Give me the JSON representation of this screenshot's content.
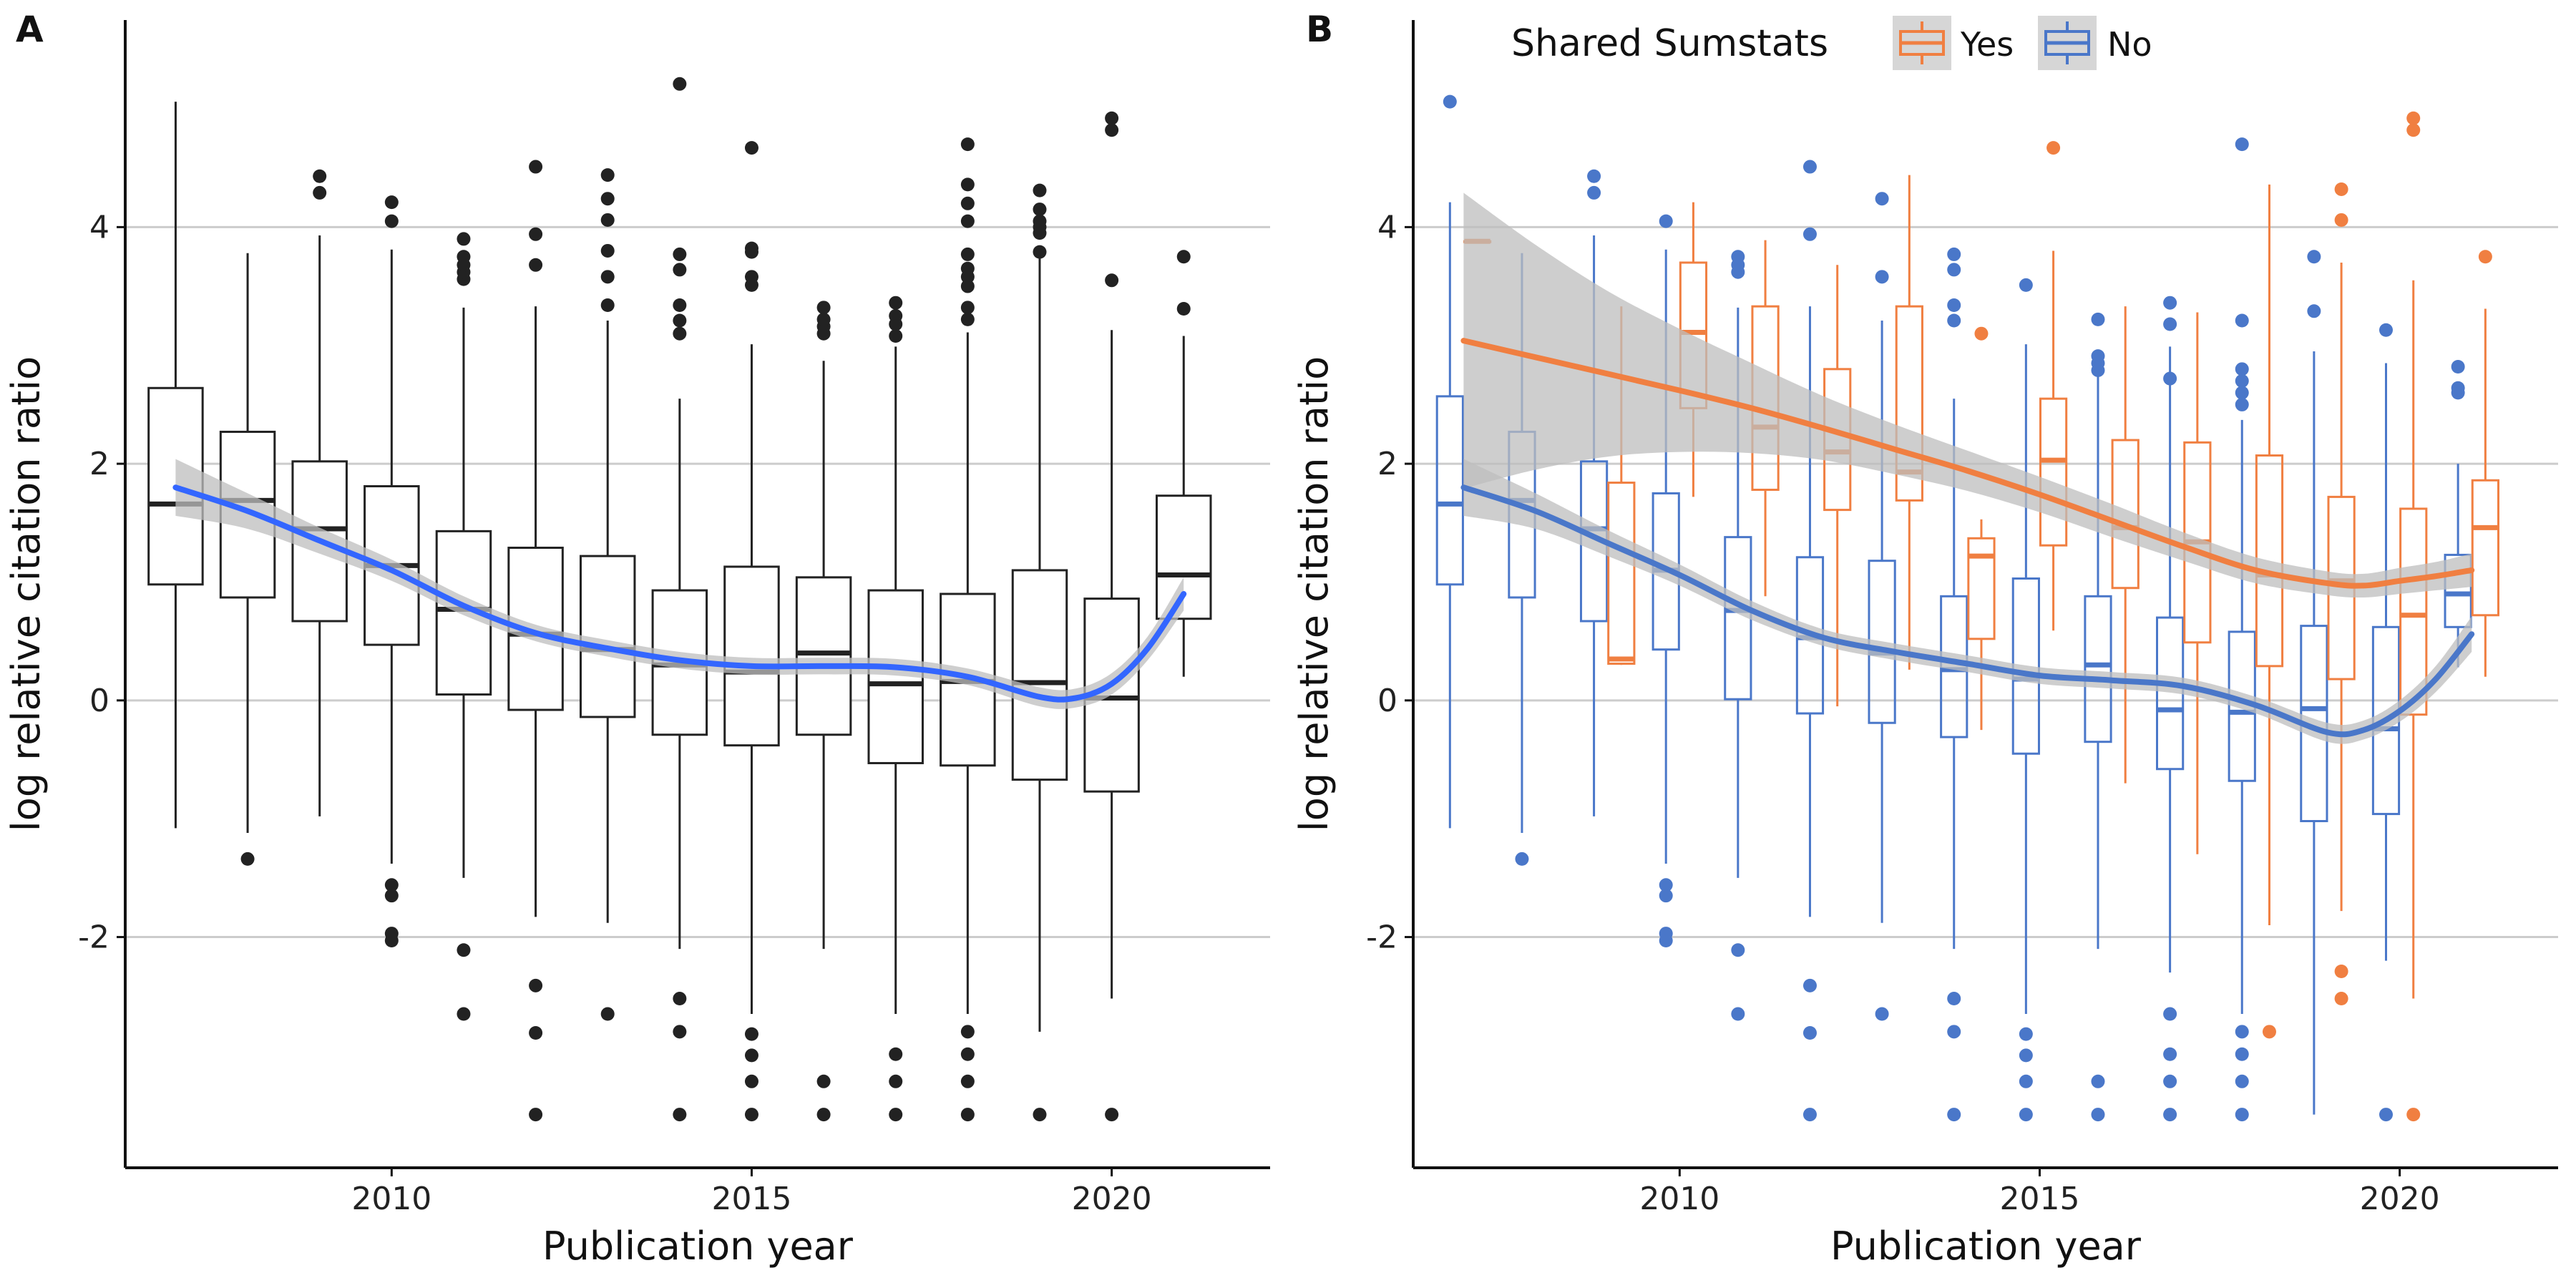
{
  "colors": {
    "overall_box": "#222222",
    "overall_smooth": "#3366ff",
    "yes": "#f07f41",
    "no": "#4a77c9",
    "ci_band": "#bdbdbd",
    "grid": "#cccccc"
  },
  "chart_data": [
    {
      "type": "box",
      "panel_tag": "A",
      "xlabel": "Publication year",
      "ylabel": "log relative citation ratio",
      "xlim": [
        2006.3,
        2022.2
      ],
      "ylim": [
        -3.95,
        5.75
      ],
      "x_ticks": [
        2010,
        2015,
        2020
      ],
      "y_ticks": [
        -2,
        0,
        2,
        4
      ],
      "grid": "horizontal",
      "boxes": [
        {
          "x": 2007,
          "min": -1.08,
          "q1": 0.98,
          "median": 1.66,
          "q3": 2.64,
          "max": 5.06,
          "outliers": []
        },
        {
          "x": 2008,
          "min": -1.12,
          "q1": 0.87,
          "median": 1.69,
          "q3": 2.27,
          "max": 3.78,
          "outliers": [
            -1.34
          ]
        },
        {
          "x": 2009,
          "min": -0.98,
          "q1": 0.67,
          "median": 1.45,
          "q3": 2.02,
          "max": 3.93,
          "outliers": [
            4.29,
            4.43
          ]
        },
        {
          "x": 2010,
          "min": -1.38,
          "q1": 0.47,
          "median": 1.14,
          "q3": 1.81,
          "max": 3.81,
          "outliers": [
            -1.56,
            -1.65,
            -1.97,
            -2.03,
            4.05,
            4.21
          ]
        },
        {
          "x": 2011,
          "min": -1.5,
          "q1": 0.05,
          "median": 0.77,
          "q3": 1.43,
          "max": 3.32,
          "outliers": [
            -2.11,
            -2.65,
            3.56,
            3.62,
            3.68,
            3.75,
            3.9
          ]
        },
        {
          "x": 2012,
          "min": -1.83,
          "q1": -0.08,
          "median": 0.56,
          "q3": 1.29,
          "max": 3.33,
          "outliers": [
            -2.41,
            -2.81,
            -3.5,
            3.68,
            3.94,
            4.51
          ]
        },
        {
          "x": 2013,
          "min": -1.88,
          "q1": -0.14,
          "median": 0.43,
          "q3": 1.22,
          "max": 3.21,
          "outliers": [
            -2.65,
            3.34,
            3.58,
            3.8,
            4.06,
            4.24,
            4.44
          ]
        },
        {
          "x": 2014,
          "min": -2.1,
          "q1": -0.29,
          "median": 0.3,
          "q3": 0.93,
          "max": 2.55,
          "outliers": [
            -2.52,
            -2.8,
            -3.5,
            3.1,
            3.21,
            3.34,
            3.64,
            3.77,
            5.21
          ]
        },
        {
          "x": 2015,
          "min": -2.65,
          "q1": -0.38,
          "median": 0.24,
          "q3": 1.13,
          "max": 3.01,
          "outliers": [
            -2.82,
            -3.0,
            -3.22,
            -3.5,
            3.51,
            3.58,
            3.79,
            3.82,
            4.67
          ]
        },
        {
          "x": 2016,
          "min": -2.1,
          "q1": -0.29,
          "median": 0.4,
          "q3": 1.04,
          "max": 2.87,
          "outliers": [
            -3.22,
            -3.5,
            3.1,
            3.16,
            3.22,
            3.32
          ]
        },
        {
          "x": 2017,
          "min": -2.65,
          "q1": -0.53,
          "median": 0.14,
          "q3": 0.93,
          "max": 2.99,
          "outliers": [
            -2.99,
            -3.22,
            -3.5,
            3.08,
            3.18,
            3.25,
            3.36
          ]
        },
        {
          "x": 2018,
          "min": -2.65,
          "q1": -0.55,
          "median": 0.16,
          "q3": 0.9,
          "max": 3.11,
          "outliers": [
            -2.8,
            -2.99,
            -3.22,
            -3.5,
            3.22,
            3.32,
            3.5,
            3.58,
            3.65,
            3.77,
            4.05,
            4.2,
            4.36,
            4.7
          ]
        },
        {
          "x": 2019,
          "min": -2.8,
          "q1": -0.67,
          "median": 0.15,
          "q3": 1.1,
          "max": 3.75,
          "outliers": [
            -3.5,
            3.79,
            3.95,
            4.0,
            4.05,
            4.15,
            4.31
          ]
        },
        {
          "x": 2020,
          "min": -2.52,
          "q1": -0.77,
          "median": 0.02,
          "q3": 0.86,
          "max": 3.13,
          "outliers": [
            -3.5,
            3.55,
            4.82,
            4.92
          ]
        },
        {
          "x": 2021,
          "min": 0.2,
          "q1": 0.69,
          "median": 1.06,
          "q3": 1.73,
          "max": 3.08,
          "outliers": [
            3.31,
            3.75
          ]
        }
      ],
      "smooth": {
        "x": [
          2007,
          2008,
          2009,
          2010,
          2011,
          2012,
          2013,
          2014,
          2015,
          2016,
          2017,
          2018,
          2019,
          2019.5,
          2020,
          2020.5,
          2021
        ],
        "y": [
          1.8,
          1.6,
          1.35,
          1.1,
          0.8,
          0.57,
          0.44,
          0.34,
          0.29,
          0.29,
          0.28,
          0.2,
          0.03,
          0.02,
          0.14,
          0.44,
          0.9
        ],
        "ci_halfwidth": [
          0.24,
          0.15,
          0.11,
          0.09,
          0.08,
          0.07,
          0.07,
          0.07,
          0.07,
          0.07,
          0.07,
          0.07,
          0.08,
          0.08,
          0.09,
          0.1,
          0.14
        ]
      }
    },
    {
      "type": "box",
      "panel_tag": "B",
      "xlabel": "Publication year",
      "ylabel": "log relative citation ratio",
      "xlim": [
        2006.3,
        2022.2
      ],
      "ylim": [
        -3.95,
        5.75
      ],
      "x_ticks": [
        2010,
        2015,
        2020
      ],
      "y_ticks": [
        -2,
        0,
        2,
        4
      ],
      "grid": "horizontal",
      "legend": {
        "placement": "top",
        "title": "Shared Sumstats",
        "entries": [
          {
            "label": "Yes",
            "color": "#f07f41"
          },
          {
            "label": "No",
            "color": "#4a77c9"
          }
        ]
      },
      "series": [
        {
          "key": "yes",
          "name": "Yes",
          "boxes": [
            {
              "x": 2007,
              "min": 3.88,
              "q1": 3.88,
              "median": 3.88,
              "q3": 3.88,
              "max": 3.88,
              "outliers": []
            },
            {
              "x": 2009,
              "min": 0.3,
              "q1": 0.31,
              "median": 0.35,
              "q3": 1.84,
              "max": 3.33,
              "outliers": []
            },
            {
              "x": 2010,
              "min": 1.72,
              "q1": 2.47,
              "median": 3.11,
              "q3": 3.7,
              "max": 4.21,
              "outliers": []
            },
            {
              "x": 2011,
              "min": 0.88,
              "q1": 1.78,
              "median": 2.31,
              "q3": 3.33,
              "max": 3.89,
              "outliers": []
            },
            {
              "x": 2012,
              "min": -0.05,
              "q1": 1.61,
              "median": 2.1,
              "q3": 2.8,
              "max": 3.68,
              "outliers": []
            },
            {
              "x": 2013,
              "min": 0.26,
              "q1": 1.69,
              "median": 1.93,
              "q3": 3.33,
              "max": 4.44,
              "outliers": []
            },
            {
              "x": 2014,
              "min": -0.25,
              "q1": 0.52,
              "median": 1.22,
              "q3": 1.37,
              "max": 1.53,
              "outliers": [
                3.1
              ]
            },
            {
              "x": 2015,
              "min": 0.59,
              "q1": 1.31,
              "median": 2.03,
              "q3": 2.55,
              "max": 3.8,
              "outliers": [
                4.67
              ]
            },
            {
              "x": 2016,
              "min": -0.7,
              "q1": 0.95,
              "median": 1.46,
              "q3": 2.2,
              "max": 3.33,
              "outliers": []
            },
            {
              "x": 2017,
              "min": -1.3,
              "q1": 0.49,
              "median": 1.34,
              "q3": 2.18,
              "max": 3.28,
              "outliers": []
            },
            {
              "x": 2018,
              "min": -1.9,
              "q1": 0.29,
              "median": 1.06,
              "q3": 2.07,
              "max": 4.36,
              "outliers": [
                -2.8
              ]
            },
            {
              "x": 2019,
              "min": -1.78,
              "q1": 0.18,
              "median": 1.01,
              "q3": 1.72,
              "max": 3.7,
              "outliers": [
                -2.29,
                -2.52,
                4.06,
                4.32
              ]
            },
            {
              "x": 2020,
              "min": -2.52,
              "q1": -0.12,
              "median": 0.72,
              "q3": 1.62,
              "max": 3.55,
              "outliers": [
                -3.5,
                4.82,
                4.92
              ]
            },
            {
              "x": 2021,
              "min": 0.2,
              "q1": 0.72,
              "median": 1.46,
              "q3": 1.86,
              "max": 3.31,
              "outliers": [
                3.75
              ]
            }
          ],
          "smooth": {
            "x": [
              2007,
              2008,
              2009,
              2010,
              2011,
              2012,
              2013,
              2014,
              2015,
              2016,
              2017,
              2018,
              2019,
              2019.5,
              2020,
              2020.5,
              2021
            ],
            "y": [
              3.04,
              2.9,
              2.76,
              2.62,
              2.47,
              2.3,
              2.12,
              1.94,
              1.74,
              1.52,
              1.3,
              1.1,
              0.99,
              0.97,
              1.01,
              1.05,
              1.1
            ],
            "ci_halfwidth": [
              1.25,
              0.95,
              0.7,
              0.52,
              0.38,
              0.27,
              0.21,
              0.17,
              0.15,
              0.14,
              0.12,
              0.11,
              0.1,
              0.1,
              0.11,
              0.12,
              0.14
            ]
          }
        },
        {
          "key": "no",
          "name": "No",
          "boxes": [
            {
              "x": 2007,
              "min": -1.08,
              "q1": 0.98,
              "median": 1.66,
              "q3": 2.57,
              "max": 4.21,
              "outliers": [
                5.06
              ]
            },
            {
              "x": 2008,
              "min": -1.12,
              "q1": 0.87,
              "median": 1.69,
              "q3": 2.27,
              "max": 3.78,
              "outliers": [
                -1.34
              ]
            },
            {
              "x": 2009,
              "min": -0.98,
              "q1": 0.67,
              "median": 1.45,
              "q3": 2.02,
              "max": 3.93,
              "outliers": [
                4.29,
                4.43
              ]
            },
            {
              "x": 2010,
              "min": -1.38,
              "q1": 0.43,
              "median": 1.1,
              "q3": 1.75,
              "max": 3.81,
              "outliers": [
                -1.56,
                -1.65,
                -1.97,
                -2.03,
                4.05
              ]
            },
            {
              "x": 2011,
              "min": -1.5,
              "q1": 0.01,
              "median": 0.76,
              "q3": 1.38,
              "max": 3.32,
              "outliers": [
                -2.11,
                -2.65,
                3.62,
                3.68,
                3.75
              ]
            },
            {
              "x": 2012,
              "min": -1.83,
              "q1": -0.11,
              "median": 0.53,
              "q3": 1.21,
              "max": 3.33,
              "outliers": [
                -2.41,
                -2.81,
                -3.5,
                3.94,
                4.51
              ]
            },
            {
              "x": 2013,
              "min": -1.88,
              "q1": -0.19,
              "median": 0.4,
              "q3": 1.18,
              "max": 3.21,
              "outliers": [
                -2.65,
                3.58,
                4.24
              ]
            },
            {
              "x": 2014,
              "min": -2.1,
              "q1": -0.31,
              "median": 0.26,
              "q3": 0.88,
              "max": 2.55,
              "outliers": [
                -2.52,
                -2.8,
                -3.5,
                3.21,
                3.34,
                3.64,
                3.77
              ]
            },
            {
              "x": 2015,
              "min": -2.65,
              "q1": -0.45,
              "median": 0.18,
              "q3": 1.03,
              "max": 3.01,
              "outliers": [
                -2.82,
                -3.0,
                -3.22,
                -3.5,
                3.51
              ]
            },
            {
              "x": 2016,
              "min": -2.1,
              "q1": -0.35,
              "median": 0.3,
              "q3": 0.88,
              "max": 2.87,
              "outliers": [
                -3.22,
                -3.5,
                2.79,
                2.85,
                2.91,
                3.22
              ]
            },
            {
              "x": 2017,
              "min": -2.3,
              "q1": -0.58,
              "median": -0.08,
              "q3": 0.7,
              "max": 2.99,
              "outliers": [
                -2.65,
                -2.99,
                -3.22,
                -3.5,
                2.72,
                3.18,
                3.36
              ]
            },
            {
              "x": 2018,
              "min": -2.65,
              "q1": -0.68,
              "median": -0.1,
              "q3": 0.58,
              "max": 2.37,
              "outliers": [
                -2.8,
                -2.99,
                -3.22,
                -3.5,
                2.5,
                2.6,
                2.7,
                2.8,
                3.21,
                4.7
              ]
            },
            {
              "x": 2019,
              "min": -3.5,
              "q1": -1.02,
              "median": -0.07,
              "q3": 0.63,
              "max": 2.95,
              "outliers": [
                3.29,
                3.75
              ]
            },
            {
              "x": 2020,
              "min": -2.2,
              "q1": -0.96,
              "median": -0.24,
              "q3": 0.62,
              "max": 2.85,
              "outliers": [
                -3.5,
                3.13
              ]
            },
            {
              "x": 2021,
              "min": 0.28,
              "q1": 0.62,
              "median": 0.9,
              "q3": 1.23,
              "max": 2.0,
              "outliers": [
                2.6,
                2.64,
                2.82
              ]
            }
          ],
          "smooth": {
            "x": [
              2007,
              2008,
              2009,
              2010,
              2011,
              2012,
              2013,
              2014,
              2015,
              2016,
              2017,
              2018,
              2019,
              2019.5,
              2020,
              2020.5,
              2021
            ],
            "y": [
              1.8,
              1.6,
              1.33,
              1.06,
              0.76,
              0.53,
              0.41,
              0.31,
              0.21,
              0.17,
              0.12,
              -0.04,
              -0.27,
              -0.25,
              -0.09,
              0.18,
              0.56
            ],
            "ci_halfwidth": [
              0.24,
              0.15,
              0.11,
              0.09,
              0.08,
              0.07,
              0.07,
              0.07,
              0.07,
              0.07,
              0.07,
              0.07,
              0.08,
              0.08,
              0.09,
              0.11,
              0.15
            ]
          }
        }
      ]
    }
  ]
}
